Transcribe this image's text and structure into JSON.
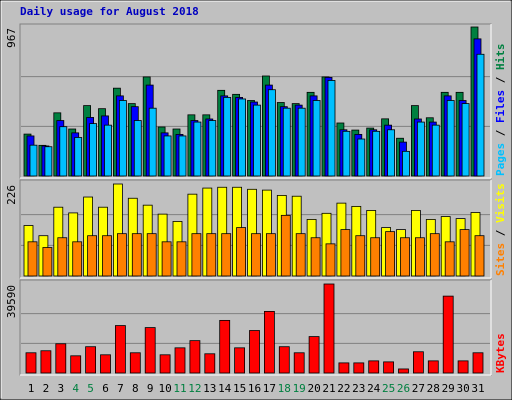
{
  "title": "Daily usage for August 2018",
  "categories": [
    "1",
    "2",
    "3",
    "4",
    "5",
    "6",
    "7",
    "8",
    "9",
    "10",
    "11",
    "12",
    "13",
    "14",
    "15",
    "16",
    "17",
    "18",
    "19",
    "20",
    "21",
    "22",
    "23",
    "24",
    "25",
    "26",
    "27",
    "28",
    "29",
    "30",
    "31"
  ],
  "highlight_categories": [
    3,
    4,
    10,
    11,
    17,
    18,
    24,
    25
  ],
  "highlight_color": "#008040",
  "legend_separator": " / ",
  "chart_data": [
    {
      "type": "bar",
      "ylim": [
        0,
        967
      ],
      "yticks": [
        967
      ],
      "series": [
        {
          "name": "Hits",
          "color": "#008040",
          "values": [
            272,
            199,
            410,
            305,
            457,
            437,
            570,
            470,
            643,
            318,
            305,
            397,
            397,
            556,
            530,
            490,
            649,
            477,
            470,
            543,
            643,
            344,
            298,
            311,
            371,
            245,
            457,
            378,
            543,
            543,
            967
          ]
        },
        {
          "name": "Files",
          "color": "#0000ff",
          "values": [
            260,
            195,
            360,
            280,
            380,
            390,
            520,
            450,
            590,
            280,
            270,
            360,
            370,
            520,
            510,
            480,
            590,
            450,
            460,
            520,
            640,
            300,
            270,
            300,
            330,
            220,
            370,
            350,
            520,
            490,
            890
          ]
        },
        {
          "name": "Pages",
          "color": "#00c0ff",
          "values": [
            200,
            190,
            320,
            250,
            340,
            330,
            490,
            360,
            440,
            260,
            260,
            350,
            360,
            510,
            500,
            460,
            560,
            440,
            440,
            490,
            620,
            290,
            240,
            290,
            300,
            160,
            350,
            330,
            490,
            470,
            790
          ]
        }
      ]
    },
    {
      "type": "bar",
      "ylim": [
        0,
        226
      ],
      "yticks": [
        226
      ],
      "series": [
        {
          "name": "Visits",
          "color": "#ffff00",
          "values": [
            124,
            99,
            169,
            155,
            194,
            169,
            226,
            191,
            174,
            152,
            134,
            201,
            216,
            218,
            218,
            213,
            211,
            198,
            196,
            139,
            154,
            179,
            171,
            161,
            119,
            114,
            161,
            139,
            146,
            141,
            156
          ]
        },
        {
          "name": "Sites",
          "color": "#ff8000",
          "values": [
            84,
            70,
            94,
            84,
            99,
            99,
            104,
            104,
            104,
            84,
            84,
            104,
            104,
            104,
            119,
            104,
            104,
            149,
            104,
            94,
            79,
            114,
            99,
            94,
            109,
            94,
            94,
            104,
            84,
            114,
            99
          ]
        }
      ]
    },
    {
      "type": "bar",
      "ylim": [
        0,
        39590
      ],
      "yticks": [
        39590
      ],
      "series": [
        {
          "name": "KBytes",
          "color": "#ff0000",
          "values": [
            9000,
            9900,
            13000,
            7650,
            11700,
            8100,
            21100,
            9000,
            20200,
            8100,
            11200,
            14400,
            8550,
            23400,
            11200,
            18900,
            27400,
            11700,
            9000,
            16200,
            39590,
            4500,
            4500,
            5400,
            4950,
            1800,
            9450,
            5400,
            34200,
            5400,
            9000
          ]
        }
      ]
    }
  ]
}
